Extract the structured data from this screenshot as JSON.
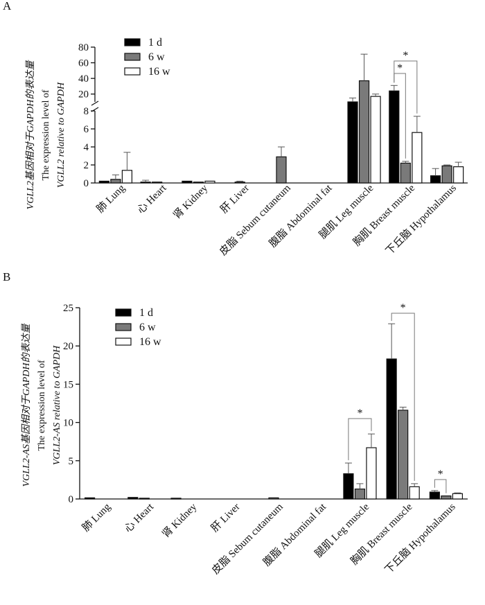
{
  "colors": {
    "s1": "#000000",
    "s2": "#7a7a7a",
    "s3": "#ffffff",
    "stroke": "#111111"
  },
  "chart_data": [
    {
      "panel": "A",
      "type": "bar",
      "ylabel_lines": [
        "VGLL2基因相对于GAPDH的表达量",
        "The expression level of",
        "VGLL2 relative to GAPDH"
      ],
      "y_axis": {
        "broken": true,
        "lower_range": [
          0,
          8
        ],
        "lower_ticks": [
          0,
          2,
          4,
          6,
          8
        ],
        "upper_range": [
          10,
          80
        ],
        "upper_ticks": [
          20,
          40,
          60,
          80
        ]
      },
      "categories": [
        "肺 Lung",
        "心 Heart",
        "肾 Kidney",
        "肝 Liver",
        "皮脂 Sebum cutaneum",
        "腹脂 Abdominal fat",
        "腿肌 Leg muscle",
        "胸肌 Breast muscle",
        "下丘脑 Hypothalamus"
      ],
      "series": [
        {
          "name": "1 d",
          "values": [
            0.2,
            0.1,
            0.2,
            0,
            0,
            0,
            10,
            24,
            0.8
          ],
          "errors": [
            0,
            0.2,
            0,
            0,
            0,
            0,
            5,
            7,
            0.8
          ]
        },
        {
          "name": "6 w",
          "values": [
            0.4,
            0.1,
            0.1,
            0.1,
            2.9,
            0,
            37,
            2.2,
            1.9
          ],
          "errors": [
            0.5,
            0,
            0,
            0.1,
            1.1,
            0,
            34,
            0.2,
            0.1
          ]
        },
        {
          "name": "16 w",
          "values": [
            1.4,
            0,
            0.2,
            0,
            0,
            0,
            17,
            5.6,
            1.8
          ],
          "errors": [
            2.0,
            0,
            0,
            0,
            0,
            0,
            3,
            1.8,
            0.5
          ]
        }
      ],
      "significance": [
        {
          "category": 7,
          "from": 0,
          "to": 1,
          "label": "*"
        },
        {
          "category": 7,
          "from": 0,
          "to": 2,
          "label": "*"
        }
      ]
    },
    {
      "panel": "B",
      "type": "bar",
      "ylabel_lines": [
        "VGLL2-AS基因相对于GAPDH的表达量",
        "The expression level of",
        "VGLL2-AS relative to GAPDH"
      ],
      "ylim": [
        0,
        25
      ],
      "yticks": [
        0,
        5,
        10,
        15,
        20,
        25
      ],
      "categories": [
        "肺 Lung",
        "心 Heart",
        "肾 Kidney",
        "肝 Liver",
        "皮脂 Sebum cutaneum",
        "腹脂 Abdominal fat",
        "腿肌 Leg muscle",
        "胸肌 Breast muscle",
        "下丘脑 Hypothalamus"
      ],
      "series": [
        {
          "name": "1 d",
          "values": [
            0.15,
            0.2,
            0.1,
            0,
            0,
            0,
            3.3,
            18.3,
            0.9
          ],
          "errors": [
            0,
            0,
            0,
            0,
            0,
            0,
            1.4,
            4.6,
            0.2
          ]
        },
        {
          "name": "6 w",
          "values": [
            0,
            0.1,
            0,
            0,
            0.15,
            0,
            1.3,
            11.6,
            0.4
          ],
          "errors": [
            0,
            0,
            0,
            0,
            0,
            0,
            0.7,
            0.4,
            0
          ]
        },
        {
          "name": "16 w",
          "values": [
            0,
            0,
            0,
            0,
            0,
            0,
            6.7,
            1.6,
            0.7
          ],
          "errors": [
            0,
            0,
            0,
            0,
            0,
            0,
            1.8,
            0.4,
            0.1
          ]
        }
      ],
      "significance": [
        {
          "category": 6,
          "from": 0,
          "to": 2,
          "label": "*"
        },
        {
          "category": 7,
          "from": 0,
          "to": 2,
          "label": "*"
        },
        {
          "category": 8,
          "from": 0,
          "to": 1,
          "label": "*"
        }
      ]
    }
  ]
}
